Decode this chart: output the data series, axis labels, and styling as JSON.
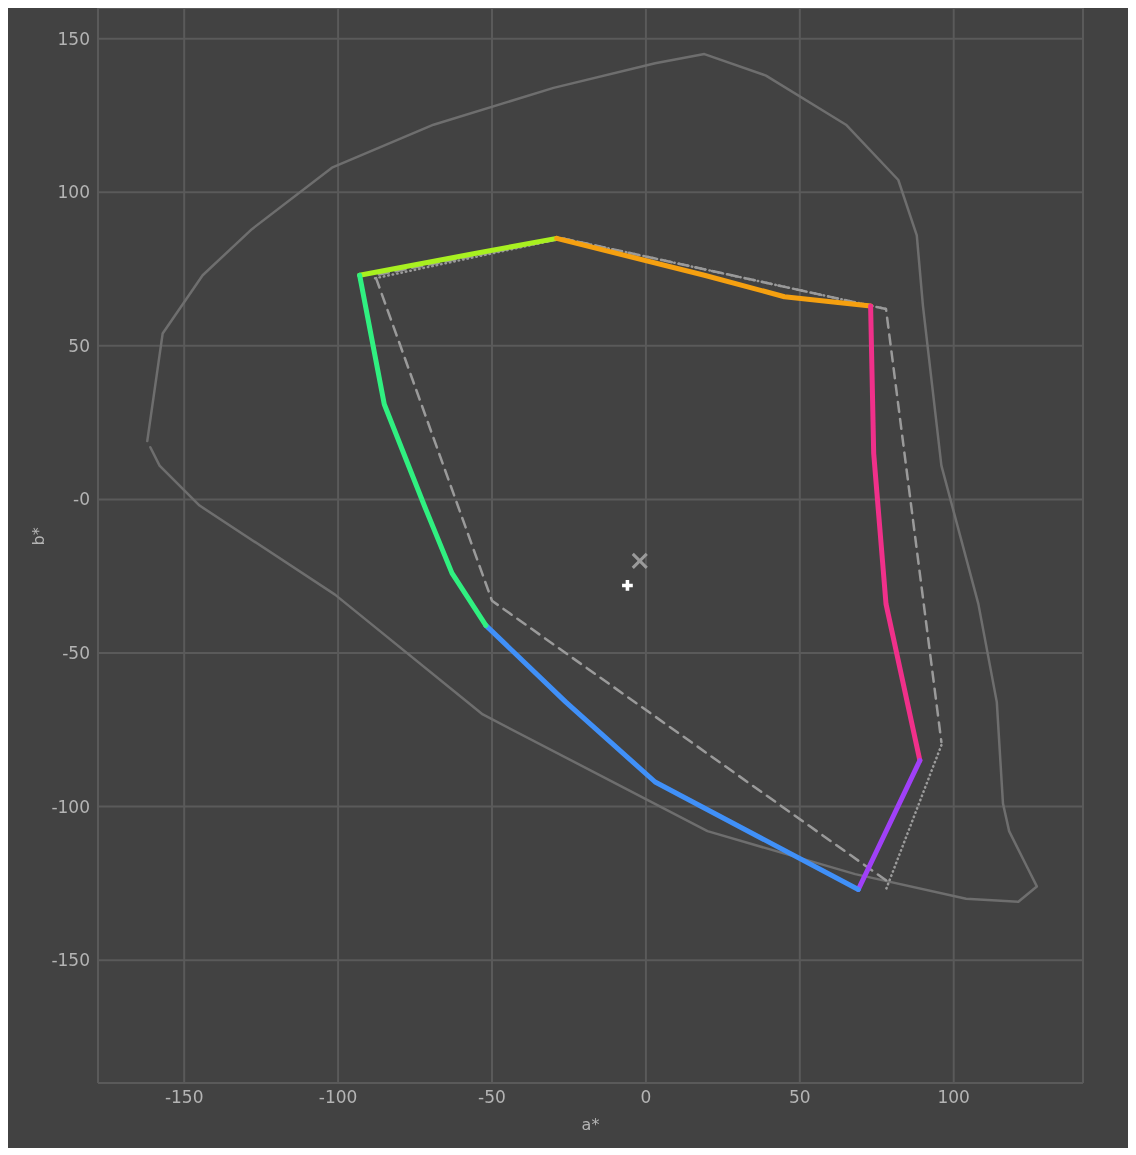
{
  "chart_data": {
    "type": "line",
    "xlabel": "a*",
    "ylabel": "b*",
    "xlim": [
      -178,
      142
    ],
    "ylim": [
      -190,
      160
    ],
    "xticks": [
      -150,
      -100,
      -50,
      0,
      50,
      100
    ],
    "yticks": [
      -150,
      -100,
      -50,
      {
        "value": 0,
        "label": "-0"
      },
      50,
      100,
      150
    ],
    "grid": true,
    "marker": "none",
    "series": [
      {
        "color": "#6e6e6e",
        "line_style": "solid",
        "x": [
          -162,
          -157,
          -144,
          -128,
          -102,
          -69,
          -30,
          3,
          19,
          39,
          65,
          82,
          88,
          90,
          96,
          108,
          114,
          116,
          118,
          124,
          127,
          121,
          104,
          68,
          20,
          -53,
          -101,
          -145,
          -158,
          -161
        ],
        "values": [
          19,
          54,
          73,
          88,
          108,
          122,
          134,
          142,
          145,
          138,
          122,
          104,
          86,
          63,
          11,
          -34,
          -66,
          -99,
          -108,
          -120,
          -126,
          -131,
          -130,
          -122,
          -108,
          -70,
          -31,
          -2,
          11,
          17
        ]
      },
      {
        "color": "#9a9a9a",
        "line_style": "dashed",
        "x": [
          78,
          -50,
          -88,
          -27,
          78,
          96
        ],
        "values": [
          -124,
          -33,
          73,
          85,
          62,
          -79
        ]
      },
      {
        "color": "#9a9a9a",
        "line_style": "dotted",
        "x": [
          -88,
          -27,
          78
        ],
        "values": [
          72,
          85,
          62
        ]
      },
      {
        "color": "#9a9a9a",
        "line_style": "dotted",
        "x": [
          96,
          78
        ],
        "values": [
          -80,
          -127
        ]
      },
      {
        "color": "#a8f020",
        "line_style": "solid",
        "x": [
          -93,
          -56,
          -29
        ],
        "values": [
          73,
          80,
          85
        ]
      },
      {
        "color": "#f5a010",
        "line_style": "solid",
        "x": [
          -29,
          19,
          45,
          73
        ],
        "values": [
          85,
          73,
          66,
          63
        ]
      },
      {
        "color": "#f0308a",
        "line_style": "solid",
        "x": [
          73,
          74,
          78,
          89
        ],
        "values": [
          63,
          15,
          -34,
          -85
        ]
      },
      {
        "color": "#a040f8",
        "line_style": "solid",
        "x": [
          89,
          69
        ],
        "values": [
          -85,
          -127
        ]
      },
      {
        "color": "#4090f8",
        "line_style": "solid",
        "x": [
          69,
          3,
          -26,
          -52
        ],
        "values": [
          -127,
          -92,
          -66,
          -41
        ]
      },
      {
        "color": "#30f080",
        "line_style": "solid",
        "x": [
          -52,
          -63,
          -72,
          -85,
          -93
        ],
        "values": [
          -41,
          -24,
          -2,
          31,
          73
        ]
      },
      {
        "type": "scatter",
        "marker": "cross",
        "color": "#ffffff",
        "x": [
          -6
        ],
        "values": [
          -28
        ]
      },
      {
        "type": "scatter",
        "marker": "x",
        "color": "#9a9a9a",
        "x": [
          -2
        ],
        "values": [
          -20
        ]
      }
    ]
  }
}
